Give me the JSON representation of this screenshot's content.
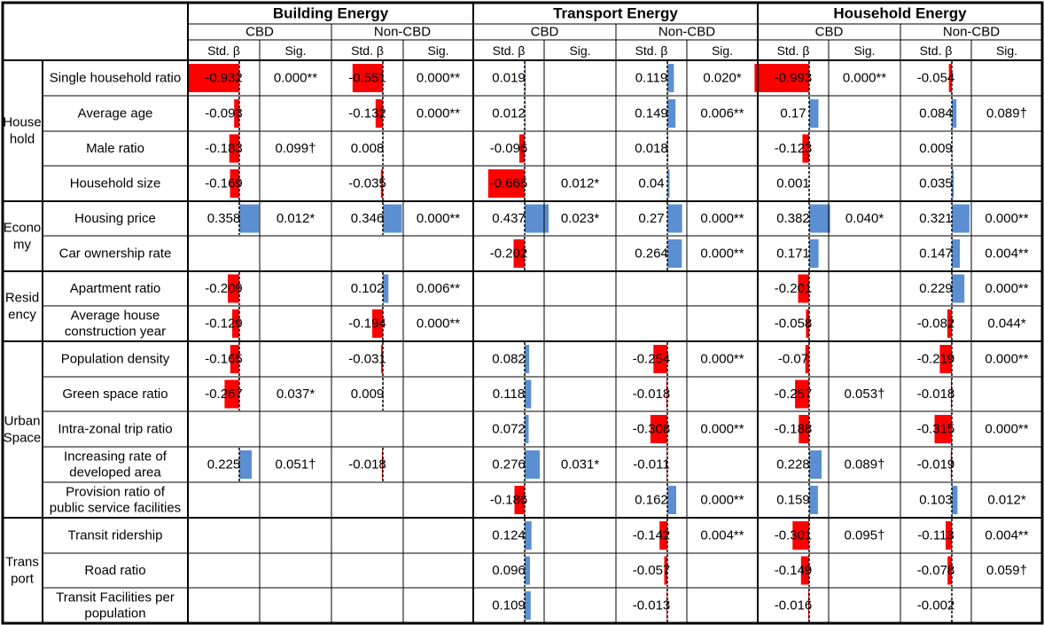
{
  "chart_data": {
    "type": "table",
    "scale_max_abs_beta": 1,
    "colors": {
      "positive_bar": "#5b8fd1",
      "negative_bar": "#ff0000",
      "zero_line": "#000000"
    },
    "groups": [
      {
        "title": "Building Energy",
        "subgroups": [
          {
            "label": "CBD",
            "cols": [
              "Std. β",
              "Sig."
            ]
          },
          {
            "label": "Non-CBD",
            "cols": [
              "Std. β",
              "Sig."
            ]
          }
        ]
      },
      {
        "title": "Transport Energy",
        "subgroups": [
          {
            "label": "CBD",
            "cols": [
              "Std. β",
              "Sig."
            ]
          },
          {
            "label": "Non-CBD",
            "cols": [
              "Std. β",
              "Sig."
            ]
          }
        ]
      },
      {
        "title": "Household Energy",
        "subgroups": [
          {
            "label": "CBD",
            "cols": [
              "Std. β",
              "Sig."
            ]
          },
          {
            "label": "Non-CBD",
            "cols": [
              "Std. β",
              "Sig."
            ]
          }
        ]
      }
    ],
    "categories": [
      {
        "lines": [
          "House",
          "hold"
        ],
        "span": 4
      },
      {
        "lines": [
          "Econo",
          "my"
        ],
        "span": 2
      },
      {
        "lines": [
          "Resid",
          "ency"
        ],
        "span": 2
      },
      {
        "lines": [
          "Urban",
          "Space"
        ],
        "span": 5
      },
      {
        "lines": [
          "Trans",
          "port"
        ],
        "span": 3
      }
    ],
    "rows": [
      {
        "lines": [
          "Single household ratio"
        ],
        "cells": [
          [
            "-0.932",
            "0.000**"
          ],
          [
            "-0.551",
            "0.000**"
          ],
          [
            "0.019",
            ""
          ],
          [
            "0.119",
            "0.020*"
          ],
          [
            "-0.993",
            "0.000**"
          ],
          [
            "-0.054",
            ""
          ]
        ]
      },
      {
        "lines": [
          "Average age"
        ],
        "cells": [
          [
            "-0.093",
            ""
          ],
          [
            "-0.132",
            "0.000**"
          ],
          [
            "0.012",
            ""
          ],
          [
            "0.149",
            "0.006**"
          ],
          [
            "0.17",
            ""
          ],
          [
            "0.084",
            "0.089†"
          ]
        ]
      },
      {
        "lines": [
          "Male ratio"
        ],
        "cells": [
          [
            "-0.183",
            "0.099†"
          ],
          [
            "0.008",
            ""
          ],
          [
            "-0.096",
            ""
          ],
          [
            "0.018",
            ""
          ],
          [
            "-0.123",
            ""
          ],
          [
            "0.009",
            ""
          ]
        ]
      },
      {
        "lines": [
          "Household size"
        ],
        "cells": [
          [
            "-0.169",
            ""
          ],
          [
            "-0.035",
            ""
          ],
          [
            "-0.665",
            "0.012*"
          ],
          [
            "0.04",
            ""
          ],
          [
            "0.001",
            ""
          ],
          [
            "0.035",
            ""
          ]
        ]
      },
      {
        "lines": [
          "Housing price"
        ],
        "cells": [
          [
            "0.358",
            "0.012*"
          ],
          [
            "0.346",
            "0.000**"
          ],
          [
            "0.437",
            "0.023*"
          ],
          [
            "0.27",
            "0.000**"
          ],
          [
            "0.382",
            "0.040*"
          ],
          [
            "0.321",
            "0.000**"
          ]
        ]
      },
      {
        "lines": [
          "Car ownership rate"
        ],
        "cells": [
          [
            "",
            ""
          ],
          [
            "",
            ""
          ],
          [
            "-0.202",
            ""
          ],
          [
            "0.264",
            "0.000**"
          ],
          [
            "0.171",
            ""
          ],
          [
            "0.147",
            "0.004**"
          ]
        ]
      },
      {
        "lines": [
          "Apartment ratio"
        ],
        "cells": [
          [
            "-0.209",
            ""
          ],
          [
            "0.102",
            "0.006**"
          ],
          [
            "",
            ""
          ],
          [
            "",
            ""
          ],
          [
            "-0.201",
            ""
          ],
          [
            "0.229",
            "0.000**"
          ]
        ]
      },
      {
        "lines": [
          "Average house",
          "construction year"
        ],
        "cells": [
          [
            "-0.129",
            ""
          ],
          [
            "-0.194",
            "0.000**"
          ],
          [
            "",
            ""
          ],
          [
            "",
            ""
          ],
          [
            "-0.058",
            ""
          ],
          [
            "-0.082",
            "0.044*"
          ]
        ]
      },
      {
        "lines": [
          "Population density"
        ],
        "cells": [
          [
            "-0.165",
            ""
          ],
          [
            "-0.031",
            ""
          ],
          [
            "0.082",
            ""
          ],
          [
            "-0.254",
            "0.000**"
          ],
          [
            "-0.07",
            ""
          ],
          [
            "-0.219",
            "0.000**"
          ]
        ]
      },
      {
        "lines": [
          "Green space ratio"
        ],
        "cells": [
          [
            "-0.267",
            "0.037*"
          ],
          [
            "0.009",
            ""
          ],
          [
            "0.118",
            ""
          ],
          [
            "-0.018",
            ""
          ],
          [
            "-0.257",
            "0.053†"
          ],
          [
            "-0.018",
            ""
          ]
        ]
      },
      {
        "lines": [
          "Intra-zonal trip ratio"
        ],
        "cells": [
          [
            "",
            ""
          ],
          [
            "",
            ""
          ],
          [
            "0.072",
            ""
          ],
          [
            "-0.308",
            "0.000**"
          ],
          [
            "-0.188",
            ""
          ],
          [
            "-0.315",
            "0.000**"
          ]
        ]
      },
      {
        "lines": [
          "Increasing rate of",
          "developed area"
        ],
        "cells": [
          [
            "0.225",
            "0.051†"
          ],
          [
            "-0.018",
            ""
          ],
          [
            "0.276",
            "0.031*"
          ],
          [
            "-0.011",
            ""
          ],
          [
            "0.228",
            "0.089†"
          ],
          [
            "-0.019",
            ""
          ]
        ]
      },
      {
        "lines": [
          "Provision ratio of",
          "public service facilities"
        ],
        "cells": [
          [
            "",
            ""
          ],
          [
            "",
            ""
          ],
          [
            "-0.186",
            ""
          ],
          [
            "0.162",
            "0.000**"
          ],
          [
            "0.159",
            ""
          ],
          [
            "0.103",
            "0.012*"
          ]
        ]
      },
      {
        "lines": [
          "Transit ridership"
        ],
        "cells": [
          [
            "",
            ""
          ],
          [
            "",
            ""
          ],
          [
            "0.124",
            ""
          ],
          [
            "-0.142",
            "0.004**"
          ],
          [
            "-0.301",
            "0.095†"
          ],
          [
            "-0.113",
            "0.004**"
          ]
        ]
      },
      {
        "lines": [
          "Road ratio"
        ],
        "cells": [
          [
            "",
            ""
          ],
          [
            "",
            ""
          ],
          [
            "0.096",
            ""
          ],
          [
            "-0.057",
            ""
          ],
          [
            "-0.149",
            ""
          ],
          [
            "-0.078",
            "0.059†"
          ]
        ]
      },
      {
        "lines": [
          "Transit Facilities per",
          "population"
        ],
        "cells": [
          [
            "",
            ""
          ],
          [
            "",
            ""
          ],
          [
            "0.109",
            ""
          ],
          [
            "-0.013",
            ""
          ],
          [
            "-0.016",
            ""
          ],
          [
            "-0.002",
            ""
          ]
        ]
      }
    ]
  }
}
